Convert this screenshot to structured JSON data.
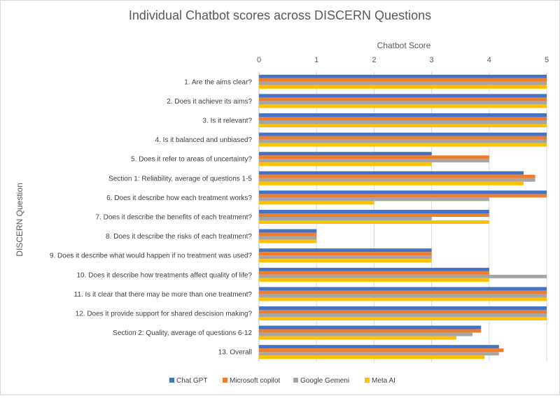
{
  "chart_data": {
    "type": "bar",
    "orientation": "horizontal",
    "title": "Individual Chatbot scores across DISCERN Questions",
    "xlabel": "Chatbot Score",
    "ylabel": "DISCERN Question",
    "xlim": [
      0,
      5
    ],
    "x_ticks": [
      "0",
      "1",
      "2",
      "3",
      "4",
      "5"
    ],
    "x_axis_position": "top",
    "grid": true,
    "legend_position": "bottom",
    "categories": [
      "1. Are the aims clear?",
      "2. Does it achieve its aims?",
      "3. Is it relevant?",
      "4. Is it balanced and unbiased?",
      "5. Does it refer to areas of uncertainty?",
      "Section 1: Reliability, average of questions 1-5",
      "6. Does it describe how each treatment works?",
      "7. Does it describe the benefits of each treatment?",
      "8. Does it describe the risks of each treatment?",
      "9. Does it describe what would happen if no treatment was used?",
      "10. Does it describe how treatments affect quality of life?",
      "11. Is it clear that there may be more than one treatment?",
      "12. Does it provide support for shared descision making?",
      "Section 2: Quality, average of questions 6-12",
      "13. Overall"
    ],
    "series": [
      {
        "name": "Chat GPT",
        "color": "#4472c4",
        "values": [
          5,
          5,
          5,
          5,
          3,
          4.6,
          5,
          4,
          1,
          3,
          4,
          5,
          5,
          3.86,
          4.17
        ]
      },
      {
        "name": "Microsoft copilot",
        "color": "#ed7d31",
        "values": [
          5,
          5,
          5,
          5,
          4,
          4.8,
          5,
          4,
          1,
          3,
          4,
          5,
          5,
          3.86,
          4.25
        ]
      },
      {
        "name": "Google Gemeni",
        "color": "#a5a5a5",
        "values": [
          5,
          5,
          5,
          5,
          4,
          4.8,
          4,
          3,
          1,
          3,
          5,
          5,
          5,
          3.71,
          4.17
        ]
      },
      {
        "name": "Meta AI",
        "color": "#ffc000",
        "values": [
          5,
          5,
          5,
          5,
          3,
          4.6,
          2,
          4,
          1,
          3,
          4,
          5,
          5,
          3.43,
          3.92
        ]
      }
    ]
  }
}
